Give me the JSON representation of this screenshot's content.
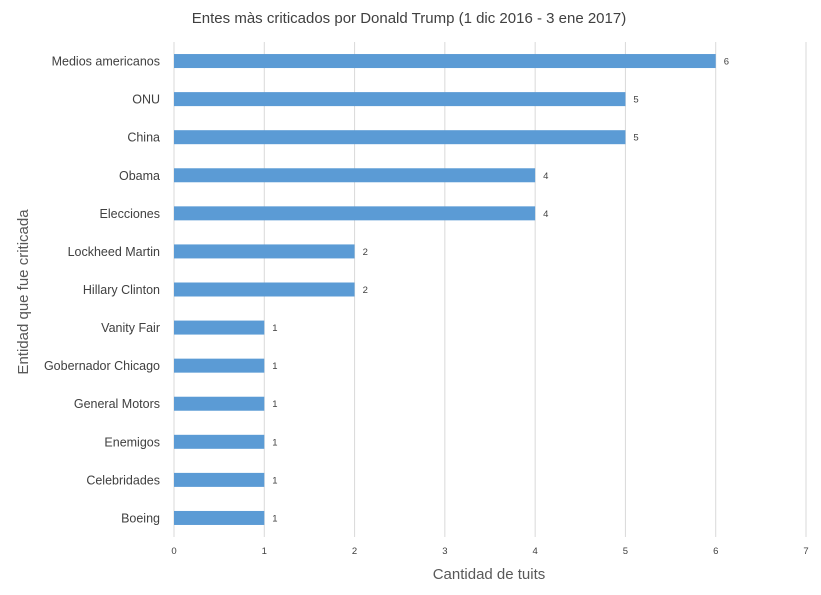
{
  "chart_data": {
    "type": "bar",
    "orientation": "horizontal",
    "title": "Entes màs criticados por Donald Trump (1 dic 2016 - 3 ene 2017)",
    "xlabel": "Cantidad de tuits",
    "ylabel": "Entidad que fue criticada",
    "categories": [
      "Medios americanos",
      "ONU",
      "China",
      "Obama",
      "Elecciones",
      "Lockheed Martin",
      "Hillary Clinton",
      "Vanity Fair",
      "Gobernador Chicago",
      "General Motors",
      "Enemigos",
      "Celebridades",
      "Boeing"
    ],
    "values": [
      6,
      5,
      5,
      4,
      4,
      2,
      2,
      1,
      1,
      1,
      1,
      1,
      1
    ],
    "xlim": [
      0,
      7
    ],
    "xticks": [
      0,
      1,
      2,
      3,
      4,
      5,
      6,
      7
    ],
    "grid": "vertical",
    "bar_color": "#5b9bd5",
    "data_labels": true,
    "legend": "none"
  }
}
